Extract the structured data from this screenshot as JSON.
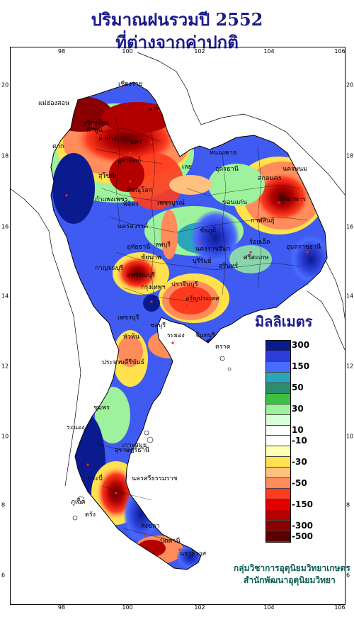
{
  "title": {
    "line1": "ปริมาณฝนรวมปี  2552",
    "line2": "ที่ต่างจากค่าปกติ"
  },
  "axes": {
    "x_ticks": [
      "98",
      "100",
      "102",
      "104",
      "106"
    ],
    "y_ticks": [
      "20",
      "18",
      "16",
      "14",
      "12",
      "10",
      "8",
      "6"
    ]
  },
  "legend": {
    "title": "มิลลิเมตร",
    "entries": [
      {
        "label": "300",
        "color": "#0a1a8f"
      },
      {
        "label": "",
        "color": "#2b3fd6"
      },
      {
        "label": "150",
        "color": "#4a6bff"
      },
      {
        "label": "",
        "color": "#2aa6b8"
      },
      {
        "label": "50",
        "color": "#2e8b6b"
      },
      {
        "label": "",
        "color": "#3fbf3f"
      },
      {
        "label": "30",
        "color": "#9ef29e"
      },
      {
        "label": "",
        "color": "#d7ffd7"
      },
      {
        "label": "10",
        "color": "#ffffff"
      },
      {
        "label": "-10",
        "color": "#ffffff"
      },
      {
        "label": "",
        "color": "#ffffb0"
      },
      {
        "label": "-30",
        "color": "#ffe24d"
      },
      {
        "label": "",
        "color": "#ffc080"
      },
      {
        "label": "-50",
        "color": "#ff8c5a"
      },
      {
        "label": "",
        "color": "#ff3b1f"
      },
      {
        "label": "-150",
        "color": "#e00000"
      },
      {
        "label": "",
        "color": "#b30000"
      },
      {
        "label": "-300",
        "color": "#8a0000"
      },
      {
        "label": "-500",
        "color": "#5a0000"
      }
    ]
  },
  "places": [
    "เชียงราย",
    "แม่ฮ่องสอน",
    "เชียงใหม่",
    "ลำพูน",
    "ลำปาง",
    "แพร่",
    "น่าน",
    "อุตรดิตถ์",
    "ตาก",
    "สุโขทัย",
    "พิษณุโลก",
    "กำแพงเพชร",
    "พิจิตร",
    "เพชรบูรณ์",
    "นครสวรรค์",
    "หนองคาย",
    "เลย",
    "อุดรธานี",
    "สกลนคร",
    "นครพนม",
    "มุกดาหาร",
    "ขอนแก่น",
    "กาฬสินธุ์",
    "ชัยภูมิ",
    "ร้อยเอ็ด",
    "อุบลราชธานี",
    "ศรีสะเกษ",
    "สุรินทร์",
    "บุรีรัมย์",
    "นครราชสีมา",
    "ลพบุรี",
    "อุทัยธานี",
    "ชัยนาท",
    "สุพรรณบุรี",
    "กาญจนบุรี",
    "กรุงเทพฯ",
    "ปราจีนบุรี",
    "อรัญประเทศ",
    "ชลบุรี",
    "ระยอง",
    "จันทบุรี",
    "ตราด",
    "เพชรบุรี",
    "หัวหิน",
    "ประจวบคีรีขันธ์",
    "ชุมพร",
    "ระนอง",
    "สุราษฎร์ธานี",
    "เกาะสมุย",
    "นครศรีธรรมราช",
    "ภูเก็ต",
    "กระบี่",
    "ตรัง",
    "สงขลา",
    "ปัตตานี",
    "นราธิวาส"
  ],
  "credits": {
    "line1": "กลุ่มวิชาการอุตุนิยมวิทยาเกษตร",
    "line2": "สำนักพัฒนาอุตุนิยมวิทยา"
  }
}
